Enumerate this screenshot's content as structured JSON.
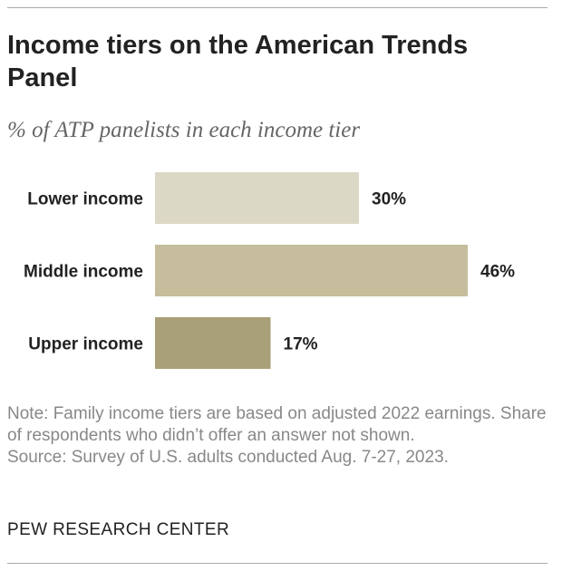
{
  "chart_data": {
    "type": "bar",
    "orientation": "horizontal",
    "title": "Income tiers on the American Trends Panel",
    "subtitle": "% of ATP panelists in each income tier",
    "categories": [
      "Lower income",
      "Middle income",
      "Upper income"
    ],
    "values": [
      30,
      46,
      17
    ],
    "value_labels": [
      "30%",
      "46%",
      "17%"
    ],
    "xlim": [
      0,
      50
    ],
    "grid": false,
    "colors": [
      "#dcd8c6",
      "#c5bd9c",
      "#a99f78"
    ]
  },
  "notes": {
    "note": "Note: Family income tiers are based on adjusted 2022 earnings. Share of respondents who didn’t offer an answer not shown.",
    "source": "Source: Survey of U.S. adults conducted Aug. 7-27, 2023."
  },
  "brand": "PEW RESEARCH CENTER"
}
